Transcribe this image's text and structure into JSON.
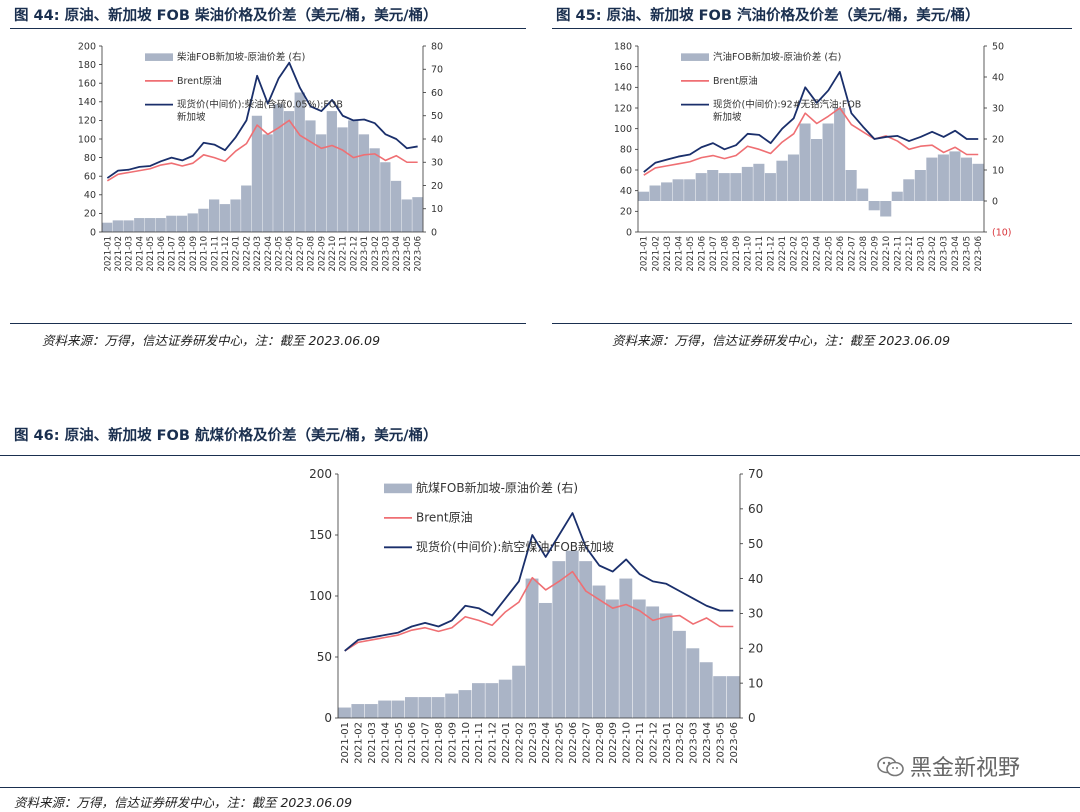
{
  "figures": [
    {
      "id": "f44",
      "title": "图 44: 原油、新加坡 FOB 柴油价格及价差（美元/桶，美元/桶）",
      "source": "资料来源：万得，信达证券研发中心，注：截至 2023.06.09"
    },
    {
      "id": "f45",
      "title": "图 45: 原油、新加坡 FOB 汽油价格及价差（美元/桶，美元/桶）",
      "source": "资料来源：万得，信达证券研发中心，注：截至 2023.06.09"
    },
    {
      "id": "f46",
      "title": "图 46: 原油、新加坡 FOB 航煤价格及价差（美元/桶，美元/桶）",
      "source": "资料来源：万得，信达证券研发中心，注：截至 2023.06.09"
    }
  ],
  "watermark": {
    "text": "黑金新视野"
  },
  "chart_data": [
    {
      "id": "f44",
      "type": "line",
      "x": [
        "2021-01",
        "2021-02",
        "2021-03",
        "2021-04",
        "2021-05",
        "2021-06",
        "2021-07",
        "2021-08",
        "2021-09",
        "2021-10",
        "2021-11",
        "2021-12",
        "2022-01",
        "2022-02",
        "2022-03",
        "2022-04",
        "2022-05",
        "2022-06",
        "2022-07",
        "2022-08",
        "2022-09",
        "2022-10",
        "2022-11",
        "2022-12",
        "2023-01",
        "2023-02",
        "2023-03",
        "2023-04",
        "2023-05",
        "2023-06"
      ],
      "y_left": [
        0,
        200
      ],
      "y_left_ticks": [
        0,
        20,
        40,
        60,
        80,
        100,
        120,
        140,
        160,
        180,
        200
      ],
      "y_right": [
        0,
        80
      ],
      "y_right_ticks": [
        0,
        10,
        20,
        30,
        40,
        50,
        60,
        70,
        80
      ],
      "series": [
        {
          "name": "柴油FOB新加坡-原油价差 (右)",
          "kind": "bar",
          "axis": "right",
          "color": "#aab4c6",
          "values": [
            4,
            5,
            5,
            6,
            6,
            6,
            7,
            7,
            8,
            10,
            14,
            12,
            14,
            20,
            50,
            42,
            55,
            52,
            60,
            48,
            42,
            52,
            45,
            48,
            42,
            36,
            30,
            22,
            14,
            15
          ]
        },
        {
          "name": "Brent原油",
          "kind": "line",
          "axis": "left",
          "color": "#ef6f73",
          "values": [
            55,
            62,
            64,
            66,
            68,
            72,
            74,
            71,
            74,
            83,
            80,
            76,
            87,
            95,
            115,
            105,
            112,
            120,
            104,
            97,
            90,
            93,
            88,
            80,
            83,
            84,
            77,
            82,
            75,
            75
          ]
        },
        {
          "name": "现货价(中间价):柴油(含硫0.05%):FOB新加坡",
          "kind": "line",
          "axis": "left",
          "color": "#1a2f6b",
          "values": [
            58,
            66,
            67,
            70,
            71,
            76,
            80,
            77,
            82,
            96,
            94,
            88,
            102,
            120,
            168,
            138,
            165,
            182,
            155,
            135,
            130,
            142,
            125,
            120,
            121,
            117,
            105,
            100,
            90,
            92
          ]
        }
      ]
    },
    {
      "id": "f45",
      "type": "line",
      "x": [
        "2021-01",
        "2021-02",
        "2021-03",
        "2021-04",
        "2021-05",
        "2021-06",
        "2021-07",
        "2021-08",
        "2021-09",
        "2021-10",
        "2021-11",
        "2021-12",
        "2022-01",
        "2022-02",
        "2022-03",
        "2022-04",
        "2022-05",
        "2022-06",
        "2022-07",
        "2022-08",
        "2022-09",
        "2022-10",
        "2022-11",
        "2022-12",
        "2023-01",
        "2023-02",
        "2023-03",
        "2023-04",
        "2023-05",
        "2023-06"
      ],
      "y_left": [
        0,
        180
      ],
      "y_left_ticks": [
        0,
        20,
        40,
        60,
        80,
        100,
        120,
        140,
        160,
        180
      ],
      "y_right": [
        -10,
        50
      ],
      "y_right_ticks": [
        -10,
        0,
        10,
        20,
        30,
        40,
        50
      ],
      "y_right_tick_labels": [
        "(10)",
        "0",
        "10",
        "20",
        "30",
        "40",
        "50"
      ],
      "series": [
        {
          "name": "汽油FOB新加坡-原油价差 (右)",
          "kind": "bar",
          "axis": "right",
          "color": "#aab4c6",
          "values": [
            3,
            5,
            6,
            7,
            7,
            9,
            10,
            9,
            9,
            11,
            12,
            9,
            13,
            15,
            25,
            20,
            25,
            30,
            10,
            4,
            -3,
            -5,
            3,
            7,
            10,
            14,
            15,
            16,
            14,
            12
          ]
        },
        {
          "name": "Brent原油",
          "kind": "line",
          "axis": "left",
          "color": "#ef6f73",
          "values": [
            55,
            62,
            64,
            66,
            68,
            72,
            74,
            71,
            74,
            83,
            80,
            76,
            87,
            95,
            115,
            105,
            112,
            120,
            104,
            97,
            90,
            93,
            88,
            80,
            83,
            84,
            77,
            82,
            75,
            75
          ]
        },
        {
          "name": "现货价(中间价):92#无铅汽油:FOB新加坡",
          "kind": "line",
          "axis": "left",
          "color": "#1a2f6b",
          "values": [
            58,
            67,
            70,
            73,
            75,
            82,
            86,
            80,
            84,
            95,
            94,
            86,
            100,
            110,
            140,
            125,
            137,
            155,
            115,
            102,
            90,
            92,
            93,
            88,
            92,
            97,
            92,
            98,
            90,
            90
          ]
        }
      ]
    },
    {
      "id": "f46",
      "type": "line",
      "x": [
        "2021-01",
        "2021-02",
        "2021-03",
        "2021-04",
        "2021-05",
        "2021-06",
        "2021-07",
        "2021-08",
        "2021-09",
        "2021-10",
        "2021-11",
        "2021-12",
        "2022-01",
        "2022-02",
        "2022-03",
        "2022-04",
        "2022-05",
        "2022-06",
        "2022-07",
        "2022-08",
        "2022-09",
        "2022-10",
        "2022-11",
        "2022-12",
        "2023-01",
        "2023-02",
        "2023-03",
        "2023-04",
        "2023-05",
        "2023-06"
      ],
      "y_left": [
        0,
        200
      ],
      "y_left_ticks": [
        0,
        50,
        100,
        150,
        200
      ],
      "y_right": [
        0,
        70
      ],
      "y_right_ticks": [
        0,
        10,
        20,
        30,
        40,
        50,
        60,
        70
      ],
      "series": [
        {
          "name": "航煤FOB新加坡-原油价差 (右)",
          "kind": "bar",
          "axis": "right",
          "color": "#aab4c6",
          "values": [
            3,
            4,
            4,
            5,
            5,
            6,
            6,
            6,
            7,
            8,
            10,
            10,
            11,
            15,
            40,
            33,
            45,
            48,
            45,
            38,
            34,
            40,
            34,
            32,
            30,
            25,
            20,
            16,
            12,
            12
          ]
        },
        {
          "name": "Brent原油",
          "kind": "line",
          "axis": "left",
          "color": "#ef6f73",
          "values": [
            55,
            62,
            64,
            66,
            68,
            72,
            74,
            71,
            74,
            83,
            80,
            76,
            87,
            95,
            115,
            105,
            112,
            120,
            104,
            97,
            90,
            93,
            88,
            80,
            83,
            84,
            77,
            82,
            75,
            75
          ]
        },
        {
          "name": "现货价(中间价):航空煤油:FOB新加坡",
          "kind": "line",
          "axis": "left",
          "color": "#1a2f6b",
          "values": [
            55,
            64,
            66,
            68,
            70,
            75,
            78,
            75,
            80,
            92,
            90,
            84,
            98,
            112,
            150,
            132,
            150,
            168,
            140,
            125,
            120,
            130,
            118,
            112,
            110,
            104,
            98,
            92,
            88,
            88
          ]
        }
      ]
    }
  ]
}
